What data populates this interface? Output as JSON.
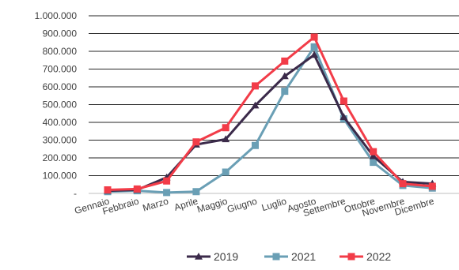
{
  "chart_data": {
    "type": "line",
    "categories": [
      "Gennaio",
      "Febbraio",
      "Marzo",
      "Aprile",
      "Maggio",
      "Giugno",
      "Luglio",
      "Agosto",
      "Settembre",
      "Ottobre",
      "Novembre",
      "Dicembre"
    ],
    "y_ticks": [
      "-",
      "100.000",
      "200.000",
      "300.000",
      "400.000",
      "500.000",
      "600.000",
      "700.000",
      "800.000",
      "900.000",
      "1.000.000"
    ],
    "ylim": [
      0,
      1000000
    ],
    "grid": true,
    "legend_position": "bottom",
    "series": [
      {
        "name": "2019",
        "color": "#3b2a4a",
        "marker": "triangle",
        "values": [
          15000,
          20000,
          90000,
          275000,
          305000,
          495000,
          660000,
          780000,
          430000,
          210000,
          65000,
          55000
        ]
      },
      {
        "name": "2021",
        "color": "#6a9fb5",
        "marker": "square",
        "values": [
          10000,
          15000,
          5000,
          10000,
          120000,
          270000,
          575000,
          825000,
          420000,
          175000,
          45000,
          30000
        ]
      },
      {
        "name": "2022",
        "color": "#f23c48",
        "marker": "square",
        "values": [
          20000,
          25000,
          70000,
          290000,
          370000,
          605000,
          745000,
          880000,
          520000,
          235000,
          55000,
          40000
        ]
      }
    ]
  }
}
